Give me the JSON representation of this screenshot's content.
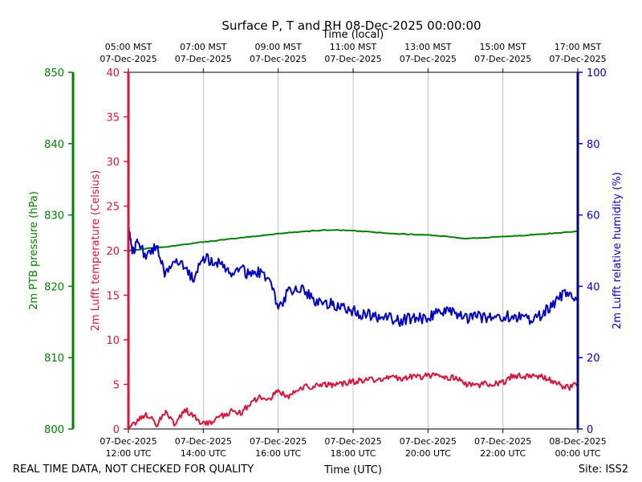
{
  "chart_data": {
    "type": "line",
    "title": "Surface P, T and RH 08-Dec-2025 00:00:00",
    "top_axis_title": "Time (local)",
    "xlabel": "Time (UTC)",
    "x_range_hours_utc": [
      12,
      24
    ],
    "grid": "vertical",
    "x_ticks": [
      {
        "hour": 12,
        "utc_date": "07-Dec-2025",
        "utc_time": "12:00 UTC",
        "local_time": "05:00 MST",
        "local_date": "07-Dec-2025"
      },
      {
        "hour": 14,
        "utc_date": "07-Dec-2025",
        "utc_time": "14:00 UTC",
        "local_time": "07:00 MST",
        "local_date": "07-Dec-2025"
      },
      {
        "hour": 16,
        "utc_date": "07-Dec-2025",
        "utc_time": "16:00 UTC",
        "local_time": "09:00 MST",
        "local_date": "07-Dec-2025"
      },
      {
        "hour": 18,
        "utc_date": "07-Dec-2025",
        "utc_time": "18:00 UTC",
        "local_time": "11:00 MST",
        "local_date": "07-Dec-2025"
      },
      {
        "hour": 20,
        "utc_date": "07-Dec-2025",
        "utc_time": "20:00 UTC",
        "local_time": "13:00 MST",
        "local_date": "07-Dec-2025"
      },
      {
        "hour": 22,
        "utc_date": "07-Dec-2025",
        "utc_time": "22:00 UTC",
        "local_time": "15:00 MST",
        "local_date": "07-Dec-2025"
      },
      {
        "hour": 24,
        "utc_date": "08-Dec-2025",
        "utc_time": "00:00 UTC",
        "local_time": "17:00 MST",
        "local_date": "07-Dec-2025"
      }
    ],
    "axes": {
      "pressure": {
        "label": "2m PTB pressure (hPa)",
        "ylim": [
          800,
          850
        ],
        "ticks": [
          800,
          810,
          820,
          830,
          840,
          850
        ],
        "color": "#008000"
      },
      "temperature": {
        "label": "2m Lufft temperature (Celsius)",
        "ylim": [
          0,
          40
        ],
        "ticks": [
          0,
          5,
          10,
          15,
          20,
          25,
          30,
          35,
          40
        ],
        "color": "#dc143c"
      },
      "humidity": {
        "label": "2m Lufft relative humidity (%)",
        "ylim": [
          0,
          100
        ],
        "ticks": [
          0,
          20,
          40,
          60,
          80,
          100
        ],
        "color": "#0000cd"
      }
    },
    "series": [
      {
        "name": "2m PTB pressure (hPa)",
        "axis": "pressure",
        "color": "#008000",
        "x": [
          12,
          12.5,
          13,
          13.5,
          14,
          14.5,
          15,
          15.5,
          16,
          16.5,
          17,
          17.5,
          18,
          18.5,
          19,
          19.5,
          20,
          20.5,
          21,
          21.5,
          22,
          22.5,
          23,
          23.5,
          24
        ],
        "values": [
          825.0,
          825.3,
          825.5,
          825.9,
          826.2,
          826.5,
          826.8,
          827.1,
          827.4,
          827.6,
          827.8,
          827.9,
          827.8,
          827.6,
          827.4,
          827.3,
          827.2,
          827.0,
          826.7,
          826.8,
          827.0,
          827.1,
          827.3,
          827.5,
          827.7
        ]
      },
      {
        "name": "2m Lufft temperature (Celsius)",
        "axis": "temperature",
        "color": "#dc143c",
        "x": [
          12,
          12.25,
          12.5,
          12.75,
          13,
          13.25,
          13.5,
          13.75,
          14,
          14.25,
          14.5,
          14.75,
          15,
          15.25,
          15.5,
          15.75,
          16,
          16.25,
          16.5,
          16.75,
          17,
          17.25,
          17.5,
          17.75,
          18,
          18.25,
          18.5,
          18.75,
          19,
          19.25,
          19.5,
          19.75,
          20,
          20.25,
          20.5,
          20.75,
          21,
          21.25,
          21.5,
          21.75,
          22,
          22.25,
          22.5,
          22.75,
          23,
          23.25,
          23.5,
          23.75,
          24
        ],
        "values": [
          0.2,
          1.0,
          1.6,
          0.5,
          2.0,
          0.4,
          2.2,
          1.3,
          0.5,
          0.8,
          1.5,
          2.0,
          1.8,
          2.8,
          3.6,
          3.3,
          4.3,
          3.6,
          4.3,
          4.7,
          4.9,
          4.9,
          4.9,
          5.1,
          5.3,
          5.5,
          5.5,
          5.6,
          5.9,
          5.7,
          5.9,
          5.8,
          6.0,
          5.9,
          5.8,
          5.7,
          5.0,
          4.9,
          5.0,
          5.1,
          5.2,
          5.9,
          5.9,
          5.8,
          6.0,
          5.5,
          5.0,
          4.6,
          5.0
        ]
      },
      {
        "name": "2m Lufft relative humidity (%)",
        "axis": "humidity",
        "color": "#0000cd",
        "x": [
          12,
          12.1,
          12.25,
          12.5,
          12.75,
          13,
          13.25,
          13.5,
          13.75,
          14,
          14.25,
          14.5,
          14.75,
          15,
          15.25,
          15.5,
          15.75,
          16,
          16.25,
          16.5,
          16.75,
          17,
          17.25,
          17.5,
          17.75,
          18,
          18.25,
          18.5,
          18.75,
          19,
          19.25,
          19.5,
          19.75,
          20,
          20.25,
          20.5,
          20.75,
          21,
          21.25,
          21.5,
          21.75,
          22,
          22.25,
          22.5,
          22.75,
          23,
          23.25,
          23.5,
          23.75,
          24
        ],
        "values": [
          57,
          50,
          52,
          48,
          51,
          43,
          48,
          45,
          42,
          48,
          47,
          46,
          44,
          45,
          43,
          44,
          42,
          34,
          38,
          40,
          38,
          36,
          35,
          35,
          34,
          33,
          32,
          32,
          31,
          31,
          30,
          31,
          31,
          31,
          33,
          33,
          32,
          31,
          32,
          31,
          31,
          31,
          32,
          31,
          31,
          32,
          34,
          37,
          38,
          36
        ]
      }
    ]
  },
  "footer": {
    "disclaimer": "REAL TIME DATA, NOT CHECKED FOR QUALITY",
    "site": "Site: ISS2"
  }
}
